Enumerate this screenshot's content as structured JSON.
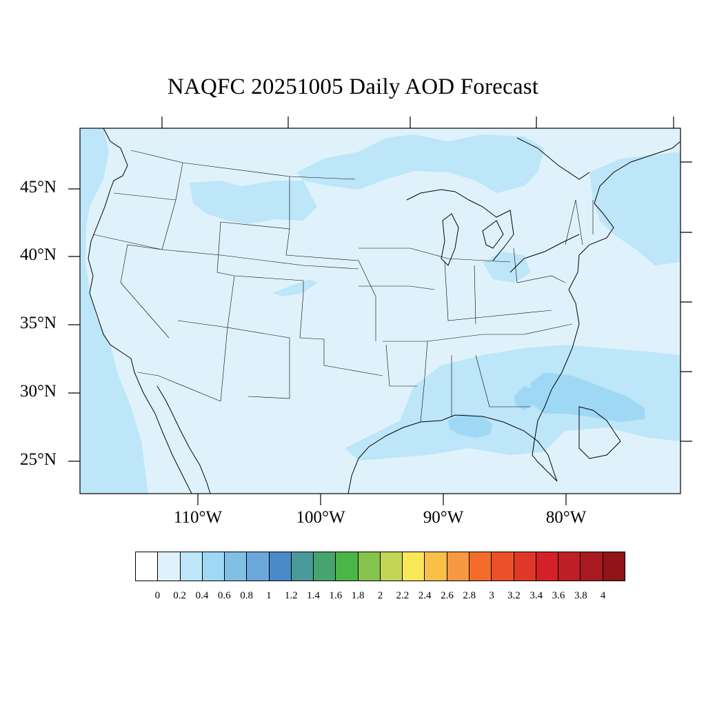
{
  "title": "NAQFC 20251005 Daily AOD Forecast",
  "map": {
    "latitude_labels": [
      "45°N",
      "40°N",
      "35°N",
      "30°N",
      "25°N"
    ],
    "latitude_values": [
      45,
      40,
      35,
      30,
      25
    ],
    "longitude_labels": [
      "110°W",
      "100°W",
      "90°W",
      "80°W"
    ],
    "longitude_values": [
      -110,
      -100,
      -90,
      -80
    ],
    "extent": {
      "lon_min": -119.5,
      "lon_max": -70.8,
      "lat_min": 22.8,
      "lat_max": 49.4
    },
    "background_fill": "#dff2fb"
  },
  "colorbar": {
    "labels": [
      "0",
      "0.2",
      "0.4",
      "0.6",
      "0.8",
      "1",
      "1.2",
      "1.4",
      "1.6",
      "1.8",
      "2",
      "2.2",
      "2.4",
      "2.6",
      "2.8",
      "3",
      "3.2",
      "3.4",
      "3.6",
      "3.8",
      "4"
    ],
    "colors": [
      "#ffffff",
      "#dff2fb",
      "#bde6f8",
      "#9ed8f4",
      "#82bfe6",
      "#6aa8dc",
      "#4a8ac8",
      "#4a9a9a",
      "#46a56e",
      "#4ab548",
      "#86c34e",
      "#c3d554",
      "#f8e858",
      "#f8c048",
      "#f89840",
      "#f46c2c",
      "#ec5028",
      "#e03828",
      "#d42028",
      "#be1e26",
      "#a81a22",
      "#901418"
    ]
  }
}
